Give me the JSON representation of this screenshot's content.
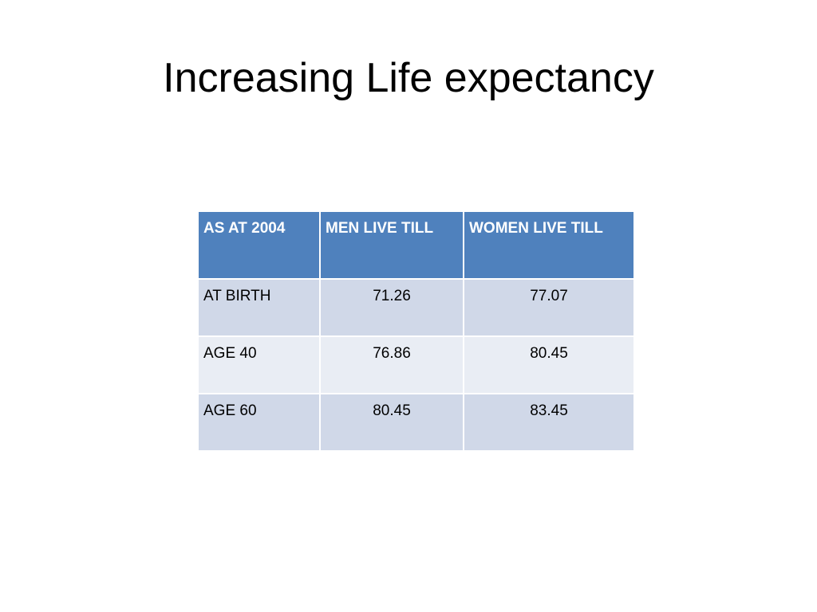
{
  "slide": {
    "title": "Increasing Life expectancy"
  },
  "table": {
    "headers": [
      "AS AT 2004",
      "MEN LIVE TILL",
      "WOMEN LIVE TILL"
    ],
    "rows": [
      {
        "label": "AT BIRTH",
        "men": "71.26",
        "women": "77.07"
      },
      {
        "label": "AGE 40",
        "men": "76.86",
        "women": "80.45"
      },
      {
        "label": "AGE 60",
        "men": "80.45",
        "women": "83.45"
      }
    ]
  },
  "colors": {
    "header_bg": "#4f81bd",
    "row_odd_bg": "#d0d8e8",
    "row_even_bg": "#e9edf4"
  }
}
